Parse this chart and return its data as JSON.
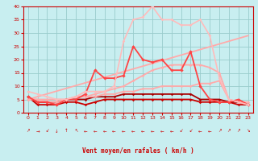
{
  "xlabel": "Vent moyen/en rafales ( km/h )",
  "xlim": [
    -0.5,
    23.5
  ],
  "ylim": [
    0,
    40
  ],
  "yticks": [
    0,
    5,
    10,
    15,
    20,
    25,
    30,
    35,
    40
  ],
  "xticks": [
    0,
    1,
    2,
    3,
    4,
    5,
    6,
    7,
    8,
    9,
    10,
    11,
    12,
    13,
    14,
    15,
    16,
    17,
    18,
    19,
    20,
    21,
    22,
    23
  ],
  "bg_color": "#c8eef0",
  "grid_color": "#99cccc",
  "series": [
    {
      "comment": "nearly flat dark red line ~5",
      "x": [
        0,
        1,
        2,
        3,
        4,
        5,
        6,
        7,
        8,
        9,
        10,
        11,
        12,
        13,
        14,
        15,
        16,
        17,
        18,
        19,
        20,
        21,
        22,
        23
      ],
      "y": [
        6,
        3,
        3,
        3,
        4,
        4,
        3,
        4,
        5,
        5,
        5,
        5,
        5,
        5,
        5,
        5,
        5,
        5,
        4,
        4,
        4,
        4,
        3,
        3
      ],
      "color": "#cc0000",
      "lw": 1.3,
      "marker": "D",
      "ms": 1.8
    },
    {
      "comment": "flat dark red ~5, slightly higher",
      "x": [
        0,
        1,
        2,
        3,
        4,
        5,
        6,
        7,
        8,
        9,
        10,
        11,
        12,
        13,
        14,
        15,
        16,
        17,
        18,
        19,
        20,
        21,
        22,
        23
      ],
      "y": [
        6,
        4,
        4,
        4,
        5,
        5,
        5,
        6,
        6,
        6,
        7,
        7,
        7,
        7,
        7,
        7,
        7,
        7,
        5,
        5,
        5,
        4,
        4,
        3
      ],
      "color": "#aa0000",
      "lw": 1.3,
      "marker": "D",
      "ms": 1.8
    },
    {
      "comment": "diagonal line from 0 to ~29 at x=23, light pink, no markers",
      "x": [
        0,
        23
      ],
      "y": [
        5,
        29
      ],
      "color": "#ffaaaa",
      "lw": 1.3,
      "marker": null,
      "ms": 0
    },
    {
      "comment": "diagonal steeper to ~12 at x=20 then drops, light pink",
      "x": [
        0,
        1,
        2,
        3,
        4,
        5,
        6,
        7,
        8,
        9,
        10,
        11,
        12,
        13,
        14,
        15,
        16,
        17,
        18,
        19,
        20,
        21,
        22,
        23
      ],
      "y": [
        5,
        5,
        5,
        5,
        5,
        6,
        6,
        6,
        7,
        7,
        8,
        8,
        9,
        9,
        10,
        10,
        10,
        10,
        11,
        11,
        12,
        5,
        4,
        4
      ],
      "color": "#ffaaaa",
      "lw": 1.3,
      "marker": "D",
      "ms": 1.8
    },
    {
      "comment": "medium pink diagonal reaching ~26 at peak around x=13",
      "x": [
        0,
        1,
        2,
        3,
        4,
        5,
        6,
        7,
        8,
        9,
        10,
        11,
        12,
        13,
        14,
        15,
        16,
        17,
        18,
        19,
        20,
        21,
        22,
        23
      ],
      "y": [
        5,
        5,
        4,
        4,
        5,
        6,
        6,
        7,
        8,
        9,
        10,
        12,
        14,
        16,
        17,
        18,
        18,
        18,
        18,
        17,
        15,
        5,
        4,
        3
      ],
      "color": "#ffaaaa",
      "lw": 1.3,
      "marker": "D",
      "ms": 1.8
    },
    {
      "comment": "jagged medium red with markers - peaks around 25 at x=13",
      "x": [
        0,
        1,
        2,
        3,
        4,
        5,
        6,
        7,
        8,
        9,
        10,
        11,
        12,
        13,
        14,
        15,
        16,
        17,
        18,
        19,
        20,
        21,
        22,
        23
      ],
      "y": [
        6,
        4,
        4,
        3,
        5,
        5,
        7,
        16,
        13,
        13,
        14,
        25,
        20,
        19,
        20,
        16,
        16,
        23,
        10,
        5,
        4,
        4,
        5,
        3
      ],
      "color": "#ff4444",
      "lw": 1.3,
      "marker": "D",
      "ms": 2.2
    },
    {
      "comment": "light pink big arc peaking at 40 around x=13",
      "x": [
        0,
        1,
        2,
        3,
        4,
        5,
        6,
        7,
        8,
        9,
        10,
        11,
        12,
        13,
        14,
        15,
        16,
        17,
        18,
        19,
        20,
        21,
        22,
        23
      ],
      "y": [
        8,
        7,
        6,
        5,
        5,
        6,
        8,
        8,
        8,
        10,
        27,
        35,
        36,
        40,
        35,
        35,
        33,
        33,
        35,
        29,
        13,
        5,
        4,
        3
      ],
      "color": "#ffbbbb",
      "lw": 1.2,
      "marker": "D",
      "ms": 1.8
    }
  ],
  "wind_arrows": [
    "NE",
    "E",
    "SW",
    "S",
    "N",
    "NW",
    "W",
    "W",
    "W",
    "W",
    "W",
    "W",
    "W",
    "W",
    "W",
    "W",
    "SW",
    "SW",
    "W",
    "W",
    "NE",
    "NE",
    "NE",
    "SE"
  ]
}
